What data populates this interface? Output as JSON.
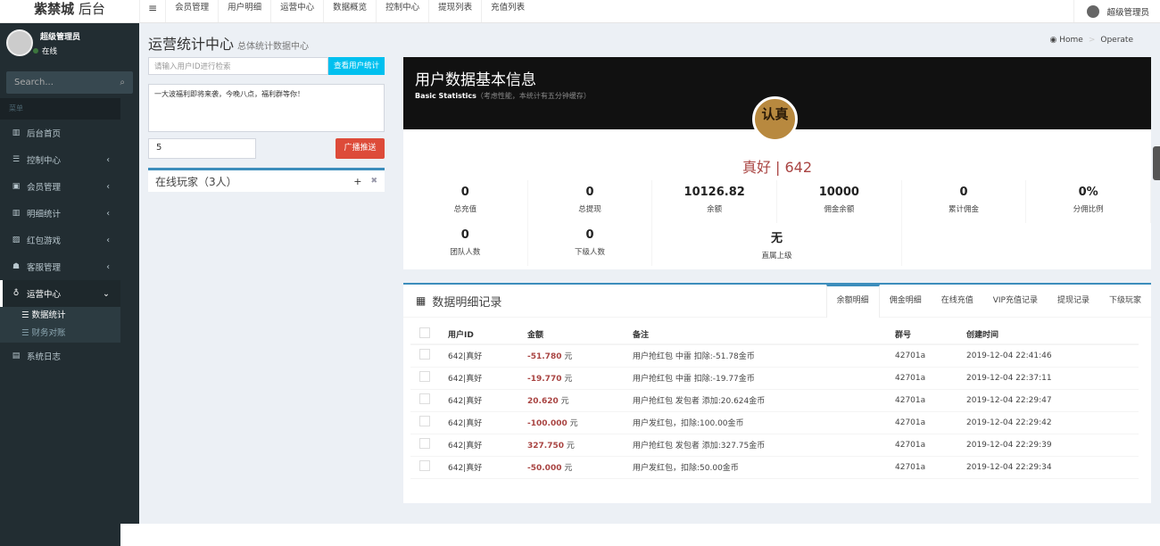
{
  "brand": {
    "bold": "紫禁城",
    "rest": "后台"
  },
  "topnav": [
    "会员管理",
    "用户明细",
    "运营中心",
    "数据概览",
    "控制中心",
    "提现列表",
    "充值列表"
  ],
  "topuser": "超级管理员",
  "sidebar": {
    "user": "超级管理员",
    "status": "在线",
    "search": "Search...",
    "header": "菜单",
    "items": [
      {
        "label": "后台首页",
        "icon": "bar-chart-icon"
      },
      {
        "label": "控制中心",
        "icon": "server-icon"
      },
      {
        "label": "会员管理",
        "icon": "id-card-icon"
      },
      {
        "label": "明细统计",
        "icon": "bar-chart-icon"
      },
      {
        "label": "红包游戏",
        "icon": "image-icon"
      },
      {
        "label": "客服管理",
        "icon": "users-icon"
      },
      {
        "label": "运营中心",
        "icon": "medal-icon"
      }
    ],
    "sub": [
      "数据统计",
      "财务对账"
    ],
    "last": "系统日志"
  },
  "page": {
    "title": "运营统计中心",
    "subtitle": "总体统计数据中心",
    "breadcrumb": [
      "Home",
      "Operate"
    ]
  },
  "left": {
    "search_placeholder": "请输入用户ID进行检索",
    "search_btn": "查看用户统计",
    "message": "一大波福利即将来袭，今晚八点，福利群等你！",
    "number": "5",
    "broadcast": "广播推送",
    "online": "在线玩家（3人）"
  },
  "card": {
    "title": "用户数据基本信息",
    "sub_en": "Basic Statistics",
    "sub_note": "（考虑性能，本统计有五分钟缓存）",
    "badge_text": "认真",
    "user": "真好 | 642",
    "stats": [
      {
        "v": "0",
        "l": "总充值"
      },
      {
        "v": "0",
        "l": "总提现"
      },
      {
        "v": "10126.82",
        "l": "余额"
      },
      {
        "v": "10000",
        "l": "佣金余额"
      },
      {
        "v": "0",
        "l": "累计佣金"
      },
      {
        "v": "0%",
        "l": "分佣比例"
      },
      {
        "v": "0",
        "l": "团队人数"
      },
      {
        "v": "0",
        "l": "下级人数"
      },
      {
        "v": "无",
        "l": "直属上级"
      }
    ]
  },
  "records": {
    "title": "数据明细记录",
    "tabs": [
      "余额明细",
      "佣金明细",
      "在线充值",
      "VIP充值记录",
      "提现记录",
      "下级玩家"
    ],
    "headers": [
      "用户ID",
      "金额",
      "备注",
      "群号",
      "创建时间"
    ],
    "unit": "元",
    "rows": [
      [
        "642|真好",
        "-51.780",
        "用户抢红包 中雷 扣除:-51.78金币",
        "42701a",
        "2019-12-04 22:41:46"
      ],
      [
        "642|真好",
        "-19.770",
        "用户抢红包 中雷 扣除:-19.77金币",
        "42701a",
        "2019-12-04 22:37:11"
      ],
      [
        "642|真好",
        "20.620",
        "用户抢红包 发包者 添加:20.624金币",
        "42701a",
        "2019-12-04 22:29:47"
      ],
      [
        "642|真好",
        "-100.000",
        "用户发红包，扣除:100.00金币",
        "42701a",
        "2019-12-04 22:29:42"
      ],
      [
        "642|真好",
        "327.750",
        "用户抢红包 发包者 添加:327.75金币",
        "42701a",
        "2019-12-04 22:29:39"
      ],
      [
        "642|真好",
        "-50.000",
        "用户发红包，扣除:50.00金币",
        "42701a",
        "2019-12-04 22:29:34"
      ]
    ]
  }
}
